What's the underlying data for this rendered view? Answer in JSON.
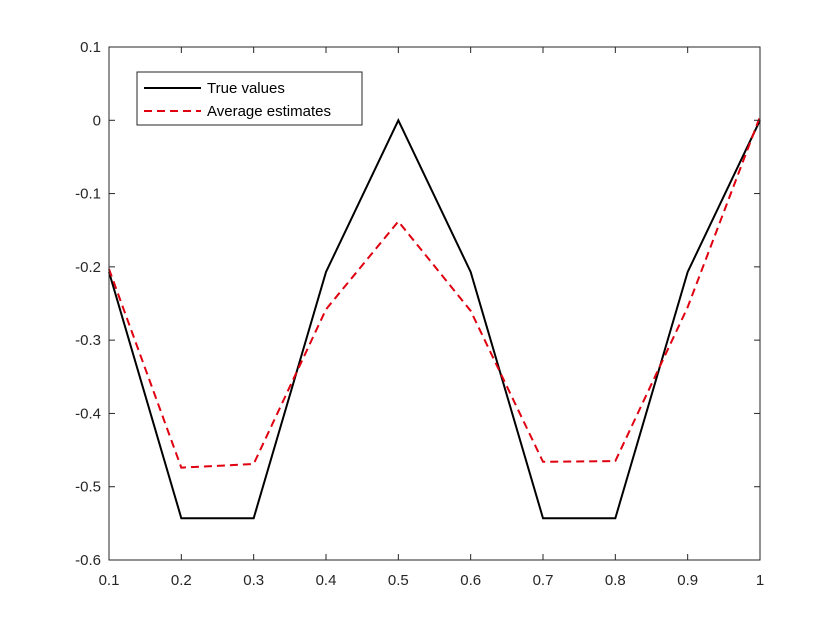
{
  "chart_data": {
    "type": "line",
    "title": "",
    "xlabel": "",
    "ylabel": "",
    "xlim": [
      0.1,
      1
    ],
    "ylim": [
      -0.6,
      0.1
    ],
    "xticks": [
      0.1,
      0.2,
      0.3,
      0.4,
      0.5,
      0.6,
      0.7,
      0.8,
      0.9,
      1
    ],
    "xtick_labels": [
      "0.1",
      "0.2",
      "0.3",
      "0.4",
      "0.5",
      "0.6",
      "0.7",
      "0.8",
      "0.9",
      "1"
    ],
    "yticks": [
      0.1,
      0,
      -0.1,
      -0.2,
      -0.3,
      -0.4,
      -0.5,
      -0.6
    ],
    "ytick_labels": [
      "0.1",
      "0",
      "-0.1",
      "-0.2",
      "-0.3",
      "-0.4",
      "-0.5",
      "-0.6"
    ],
    "grid": false,
    "legend_position": "top-left",
    "x": [
      0.1,
      0.2,
      0.3,
      0.4,
      0.5,
      0.6,
      0.7,
      0.8,
      0.9,
      1
    ],
    "series": [
      {
        "name": "True values",
        "color": "#000000",
        "style": "solid",
        "values": [
          -0.207,
          -0.543,
          -0.543,
          -0.207,
          0,
          -0.207,
          -0.543,
          -0.543,
          -0.207,
          0
        ]
      },
      {
        "name": "Average estimates",
        "color": "#e0000f",
        "style": "dashed",
        "values": [
          -0.203,
          -0.474,
          -0.469,
          -0.258,
          -0.138,
          -0.26,
          -0.466,
          -0.465,
          -0.255,
          0.005
        ]
      }
    ]
  }
}
